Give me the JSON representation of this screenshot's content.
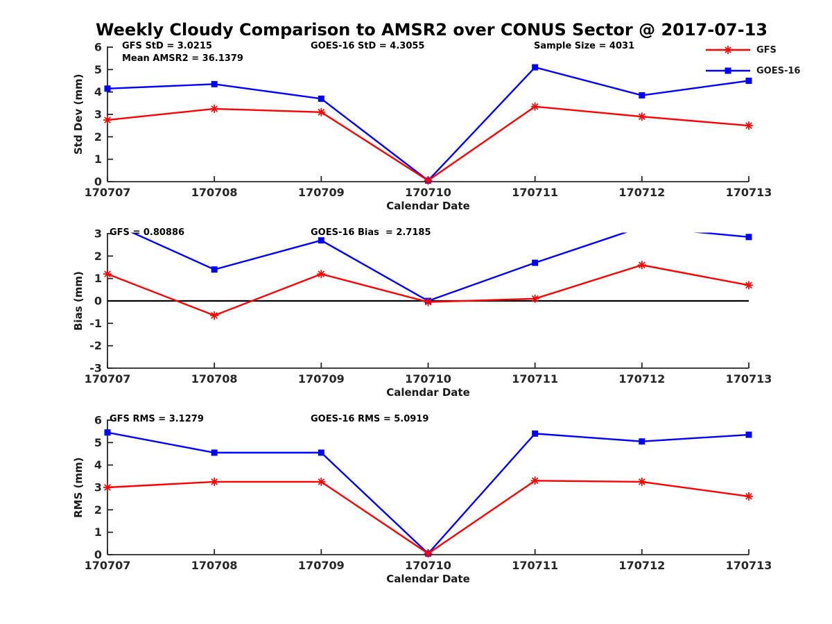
{
  "title": "Weekly Cloudy Comparison to AMSR2 over CONUS Sector @ 2017-07-13",
  "colors": {
    "gfs": "#ff0000",
    "goes16": "#0000ff",
    "axis": "#262626",
    "zero_line": "#000000",
    "background": "#ffffff"
  },
  "legend": {
    "position": "top-right",
    "items": [
      {
        "label": "GFS",
        "color": "#ff0000",
        "marker": "asterisk"
      },
      {
        "label": "GOES-16",
        "color": "#0000ff",
        "marker": "square"
      }
    ]
  },
  "chart_data": [
    {
      "type": "line",
      "name": "std-dev",
      "ylabel": "Std Dev (mm)",
      "xlabel": "Calendar Date",
      "ylim": [
        0,
        6
      ],
      "ytick_step": 1,
      "grid": false,
      "zero_line": false,
      "categories": [
        "170707",
        "170708",
        "170709",
        "170710",
        "170711",
        "170712",
        "170713"
      ],
      "series": [
        {
          "name": "GFS",
          "color": "#ff0000",
          "marker": "asterisk",
          "values": [
            2.75,
            3.25,
            3.1,
            0.05,
            3.35,
            2.9,
            2.5
          ]
        },
        {
          "name": "GOES-16",
          "color": "#0000ff",
          "marker": "square",
          "values": [
            4.15,
            4.35,
            3.7,
            0.05,
            5.1,
            3.85,
            4.5
          ]
        }
      ],
      "annotations": [
        "GFS StD = 3.0215",
        "Mean AMSR2 = 36.1379",
        "GOES-16 StD = 4.3055",
        "Sample Size = 4031"
      ]
    },
    {
      "type": "line",
      "name": "bias",
      "ylabel": "Bias (mm)",
      "xlabel": "Calendar Date",
      "ylim": [
        -3,
        3
      ],
      "ytick_step": 1,
      "grid": false,
      "zero_line": true,
      "categories": [
        "170707",
        "170708",
        "170709",
        "170710",
        "170711",
        "170712",
        "170713"
      ],
      "series": [
        {
          "name": "GFS",
          "color": "#ff0000",
          "marker": "asterisk",
          "values": [
            1.2,
            -0.65,
            1.2,
            -0.05,
            0.1,
            1.6,
            0.7
          ]
        },
        {
          "name": "GOES-16",
          "color": "#0000ff",
          "marker": "square",
          "values": [
            3.55,
            1.4,
            2.7,
            0.0,
            1.7,
            3.3,
            2.85
          ]
        }
      ],
      "annotations": [
        "GFS = 0.80886",
        "GOES-16 Bias  = 2.7185"
      ]
    },
    {
      "type": "line",
      "name": "rms",
      "ylabel": "RMS (mm)",
      "xlabel": "Calendar Date",
      "ylim": [
        0,
        6
      ],
      "ytick_step": 1,
      "grid": false,
      "zero_line": false,
      "categories": [
        "170707",
        "170708",
        "170709",
        "170710",
        "170711",
        "170712",
        "170713"
      ],
      "series": [
        {
          "name": "GFS",
          "color": "#ff0000",
          "marker": "asterisk",
          "values": [
            3.0,
            3.25,
            3.25,
            0.05,
            3.3,
            3.25,
            2.6
          ]
        },
        {
          "name": "GOES-16",
          "color": "#0000ff",
          "marker": "square",
          "values": [
            5.45,
            4.55,
            4.55,
            0.05,
            5.4,
            5.05,
            5.35
          ]
        }
      ],
      "annotations": [
        "GFS RMS = 3.1279",
        "GOES-16 RMS = 5.0919"
      ]
    }
  ]
}
